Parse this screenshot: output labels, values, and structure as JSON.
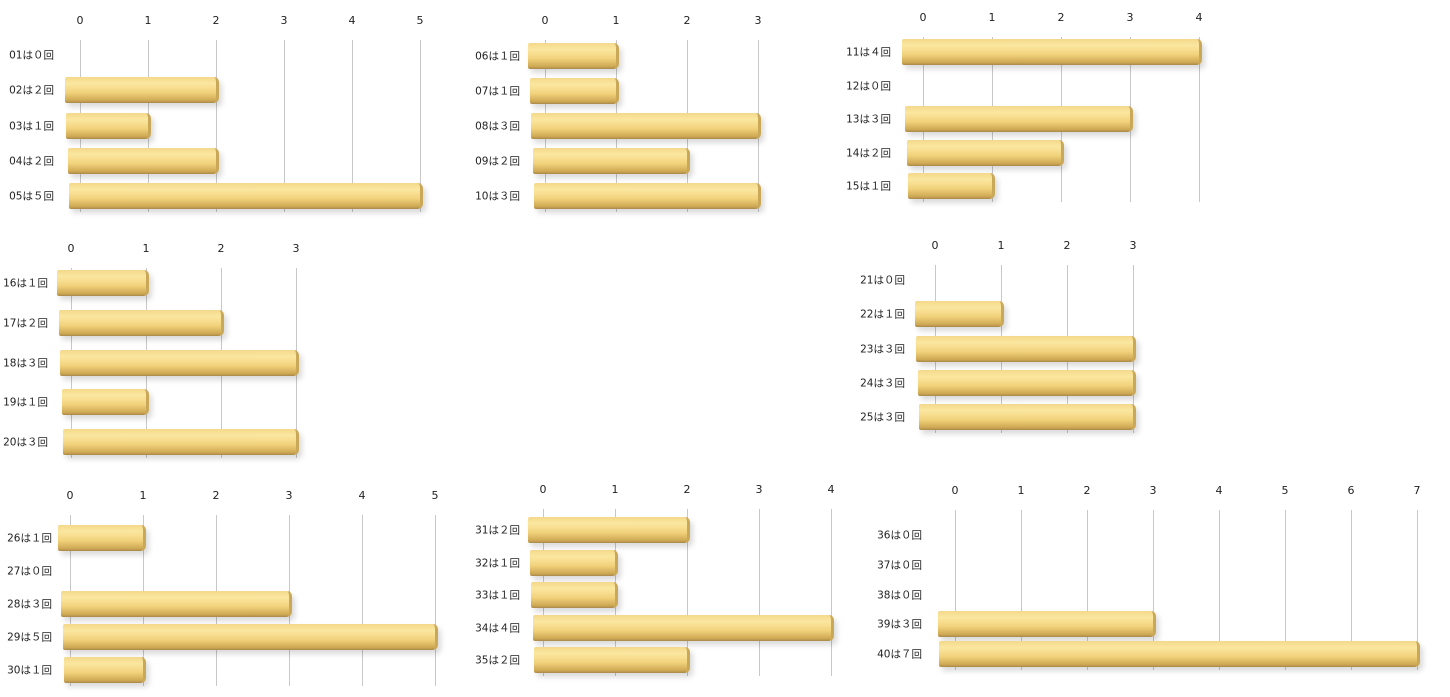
{
  "chart_data": [
    {
      "type": "bar",
      "orientation": "horizontal",
      "ticks": [
        "0",
        "1",
        "2",
        "3",
        "4",
        "5"
      ],
      "xlim": [
        0,
        5
      ],
      "categories": [
        "01は０回",
        "02は２回",
        "03は１回",
        "04は２回",
        "05は５回"
      ],
      "values": [
        0,
        2,
        1,
        2,
        5
      ]
    },
    {
      "type": "bar",
      "orientation": "horizontal",
      "ticks": [
        "0",
        "1",
        "2",
        "3"
      ],
      "xlim": [
        0,
        3
      ],
      "categories": [
        "06は１回",
        "07は１回",
        "08は３回",
        "09は２回",
        "10は３回"
      ],
      "values": [
        1,
        1,
        3,
        2,
        3
      ]
    },
    {
      "type": "bar",
      "orientation": "horizontal",
      "ticks": [
        "0",
        "1",
        "2",
        "3",
        "4"
      ],
      "xlim": [
        0,
        4
      ],
      "categories": [
        "11は４回",
        "12は０回",
        "13は３回",
        "14は２回",
        "15は１回"
      ],
      "values": [
        4,
        0,
        3,
        2,
        1
      ]
    },
    {
      "type": "bar",
      "orientation": "horizontal",
      "ticks": [
        "0",
        "1",
        "2",
        "3"
      ],
      "xlim": [
        0,
        3
      ],
      "categories": [
        "16は１回",
        "17は２回",
        "18は３回",
        "19は１回",
        "20は３回"
      ],
      "values": [
        1,
        2,
        3,
        1,
        3
      ]
    },
    {
      "type": "bar",
      "orientation": "horizontal",
      "ticks": [
        "0",
        "1",
        "2",
        "3"
      ],
      "xlim": [
        0,
        3
      ],
      "categories": [
        "21は０回",
        "22は１回",
        "23は３回",
        "24は３回",
        "25は３回"
      ],
      "values": [
        0,
        1,
        3,
        3,
        3
      ]
    },
    {
      "type": "bar",
      "orientation": "horizontal",
      "ticks": [
        "0",
        "1",
        "2",
        "3",
        "4",
        "5"
      ],
      "xlim": [
        0,
        5
      ],
      "categories": [
        "26は１回",
        "27は０回",
        "28は３回",
        "29は５回",
        "30は１回"
      ],
      "values": [
        1,
        0,
        3,
        5,
        1
      ]
    },
    {
      "type": "bar",
      "orientation": "horizontal",
      "ticks": [
        "0",
        "1",
        "2",
        "3",
        "4"
      ],
      "xlim": [
        0,
        4
      ],
      "categories": [
        "31は２回",
        "32は１回",
        "33は１回",
        "34は４回",
        "35は２回"
      ],
      "values": [
        2,
        1,
        1,
        4,
        2
      ]
    },
    {
      "type": "bar",
      "orientation": "horizontal",
      "ticks": [
        "0",
        "1",
        "2",
        "3",
        "4",
        "5",
        "6",
        "7"
      ],
      "xlim": [
        0,
        7
      ],
      "categories": [
        "36は０回",
        "37は０回",
        "38は０回",
        "39は３回",
        "40は７回"
      ],
      "values": [
        0,
        0,
        0,
        3,
        7
      ]
    }
  ],
  "colors": {
    "bar": "#f3d88a",
    "grid": "#c8c8c8"
  }
}
